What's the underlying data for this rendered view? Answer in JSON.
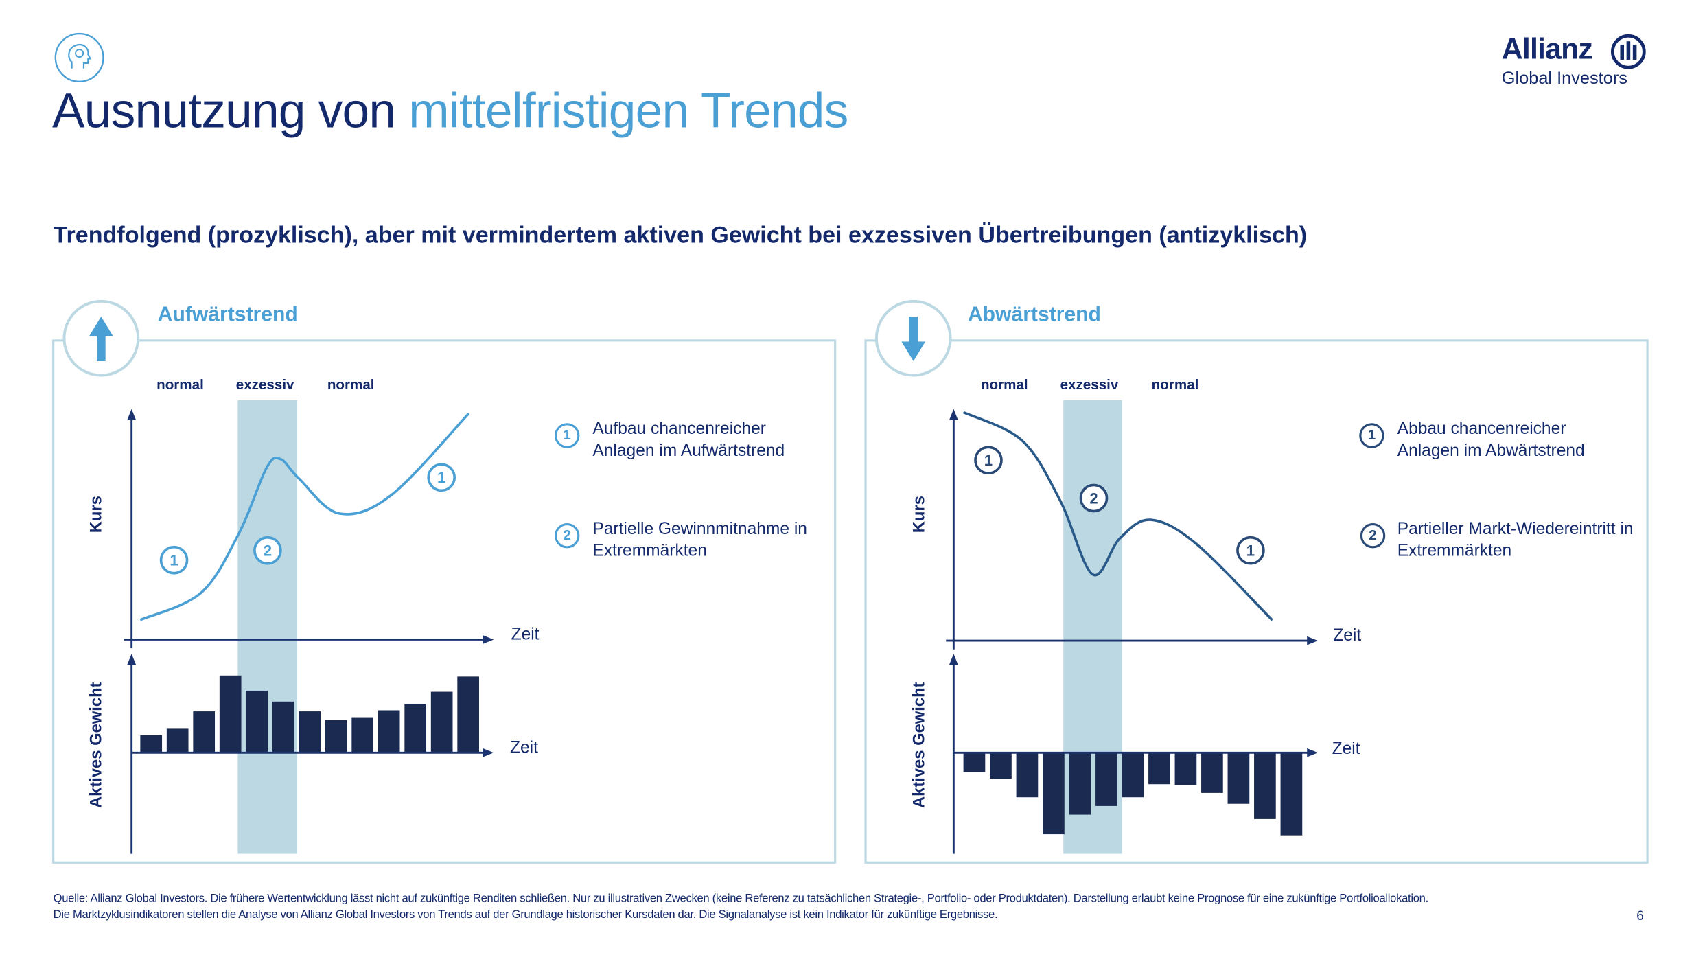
{
  "header": {
    "title_part1": "Ausnutzung von ",
    "title_part2": "mittelfristigen Trends",
    "logo_brand": "Allianz",
    "logo_sub": "Global Investors",
    "icon": "brain-head-icon"
  },
  "subtitle": "Trendfolgend (prozyklisch), aber mit vermindertem aktiven Gewicht bei exzessiven Übertreibungen (antizyklisch)",
  "colors": {
    "navy": "#13296b",
    "accent": "#4a9fd4",
    "band": "#bcd9e3",
    "bar": "#1b2a50",
    "down_line": "#2a5a8a"
  },
  "chart_data": [
    {
      "type": "line",
      "title": "Aufwärtstrend",
      "phases": [
        "normal",
        "exzessiv",
        "normal"
      ],
      "ylabel": "Kurs",
      "xlabel": "Zeit",
      "xlim": [
        0,
        100
      ],
      "ylim": [
        0,
        100
      ],
      "excessive_band": [
        29.5,
        46
      ],
      "price": {
        "t": [
          2.4,
          19.3,
          29.9,
          37.5,
          41.4,
          46.5,
          57.7,
          72.2,
          93.7
        ],
        "p": [
          8.6,
          20.5,
          46.7,
          75.2,
          79,
          70.5,
          55.2,
          63.3,
          99
        ]
      },
      "markers": [
        {
          "label": "1",
          "t": 11.8,
          "p": 34.8
        },
        {
          "label": "2",
          "t": 37.8,
          "p": 39
        },
        {
          "label": "1",
          "t": 86.1,
          "p": 71
        }
      ],
      "weight": {
        "type": "bar",
        "ylabel": "Aktives Gewicht",
        "xlabel": "Zeit",
        "values": [
          16,
          22,
          38,
          71,
          57,
          47,
          38,
          30,
          32,
          39,
          45,
          56,
          70
        ]
      },
      "legend": [
        {
          "num": "1",
          "text": "Aufbau chancenreicher Anlagen im Aufwärtstrend"
        },
        {
          "num": "2",
          "text": "Partielle Gewinnmitnahme in Extremmärkten"
        }
      ]
    },
    {
      "type": "line",
      "title": "Abwärtstrend",
      "phases": [
        "normal",
        "exzessiv",
        "normal"
      ],
      "ylabel": "Kurs",
      "xlabel": "Zeit",
      "xlim": [
        0,
        100
      ],
      "ylim": [
        0,
        100
      ],
      "excessive_band": [
        30.3,
        46.5
      ],
      "price": {
        "t": [
          2.7,
          18.9,
          29.4,
          38.4,
          45.9,
          54.4,
          67,
          88
        ],
        "p": [
          100,
          87.6,
          61.4,
          29,
          44.8,
          52.9,
          42.4,
          9
        ]
      },
      "markers": [
        {
          "label": "1",
          "t": 9.6,
          "p": 79
        },
        {
          "label": "2",
          "t": 38.7,
          "p": 62.4
        },
        {
          "label": "1",
          "t": 82,
          "p": 39.5
        }
      ],
      "weight": {
        "type": "bar",
        "ylabel": "Aktives Gewicht",
        "xlabel": "Zeit",
        "values": [
          -18,
          -24,
          -41,
          -75,
          -57,
          -49,
          -41,
          -29,
          -30,
          -37,
          -47,
          -61,
          -76
        ]
      },
      "legend": [
        {
          "num": "1",
          "text": "Abbau chancenreicher Anlagen im Abwärtstrend"
        },
        {
          "num": "2",
          "text": "Partieller Markt-Wiedereintritt in Extremmärkten"
        }
      ]
    }
  ],
  "footer": {
    "line1": "Quelle: Allianz Global Investors. Die frühere Wertentwicklung lässt nicht auf zukünftige Renditen schließen. Nur zu illustrativen Zwecken (keine Referenz zu tatsächlichen Strategie-, Portfolio- oder Produktdaten). Darstellung erlaubt keine Prognose für eine zukünftige Portfolioallokation.",
    "line2": "Die Marktzyklusindikatoren stellen die Analyse von Allianz Global Investors von Trends auf der Grundlage historischer Kursdaten dar. Die Signalanalyse ist kein Indikator für zukünftige Ergebnisse.",
    "page": "6"
  }
}
